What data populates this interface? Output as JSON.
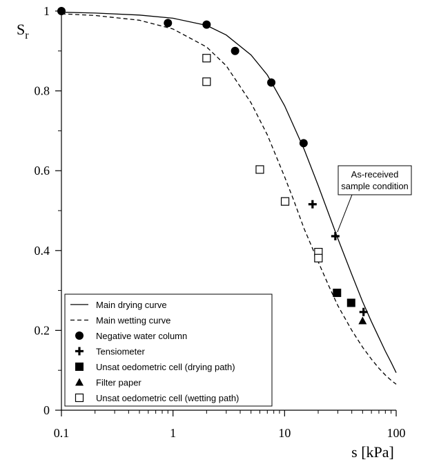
{
  "chart_data": {
    "type": "scatter",
    "x_scale": "log",
    "xlim": [
      0.1,
      100
    ],
    "ylim": [
      0,
      1
    ],
    "xlabel": "s [kPa]",
    "ylabel": "Sr",
    "x_ticks": [
      {
        "value": 0.1,
        "label": "0.1"
      },
      {
        "value": 1,
        "label": "1"
      },
      {
        "value": 10,
        "label": "10"
      },
      {
        "value": 100,
        "label": "100"
      }
    ],
    "y_ticks": [
      {
        "value": 0,
        "label": "0"
      },
      {
        "value": 0.2,
        "label": "0.2"
      },
      {
        "value": 0.4,
        "label": "0.4"
      },
      {
        "value": 0.6,
        "label": "0.6"
      },
      {
        "value": 0.8,
        "label": "0.8"
      },
      {
        "value": 1,
        "label": "1"
      }
    ],
    "grid": false,
    "legend_position": "bottom-left",
    "series": [
      {
        "name": "Main drying curve",
        "kind": "line",
        "style": "solid",
        "points": [
          [
            0.1,
            0.997
          ],
          [
            0.2,
            0.995
          ],
          [
            0.5,
            0.99
          ],
          [
            1,
            0.982
          ],
          [
            2,
            0.964
          ],
          [
            3,
            0.94
          ],
          [
            5,
            0.89
          ],
          [
            7,
            0.84
          ],
          [
            10,
            0.763
          ],
          [
            15,
            0.653
          ],
          [
            20,
            0.563
          ],
          [
            30,
            0.43
          ],
          [
            40,
            0.34
          ],
          [
            50,
            0.272
          ],
          [
            60,
            0.222
          ],
          [
            70,
            0.182
          ],
          [
            80,
            0.148
          ],
          [
            90,
            0.12
          ],
          [
            100,
            0.094
          ]
        ]
      },
      {
        "name": "Main wetting curve",
        "kind": "line",
        "style": "dashed",
        "points": [
          [
            0.1,
            0.993
          ],
          [
            0.2,
            0.989
          ],
          [
            0.5,
            0.977
          ],
          [
            1,
            0.955
          ],
          [
            2,
            0.91
          ],
          [
            3,
            0.863
          ],
          [
            5,
            0.77
          ],
          [
            7,
            0.69
          ],
          [
            10,
            0.585
          ],
          [
            12,
            0.528
          ],
          [
            15,
            0.454
          ],
          [
            20,
            0.372
          ],
          [
            25,
            0.31
          ],
          [
            30,
            0.262
          ],
          [
            40,
            0.2
          ],
          [
            50,
            0.158
          ],
          [
            60,
            0.128
          ],
          [
            70,
            0.105
          ],
          [
            80,
            0.088
          ],
          [
            90,
            0.075
          ],
          [
            100,
            0.065
          ]
        ]
      },
      {
        "name": "Negative water column",
        "kind": "points",
        "marker": "circle",
        "points": [
          [
            0.1,
            1.0
          ],
          [
            0.9,
            0.97
          ],
          [
            2.0,
            0.966
          ],
          [
            3.6,
            0.9
          ],
          [
            7.6,
            0.821
          ],
          [
            14.8,
            0.669
          ]
        ]
      },
      {
        "name": "Tensiometer",
        "kind": "points",
        "marker": "plus",
        "points": [
          [
            17.8,
            0.516
          ],
          [
            28.5,
            0.436
          ],
          [
            51,
            0.246
          ]
        ]
      },
      {
        "name": "Unsat oedometric cell (drying path)",
        "kind": "points",
        "marker": "square-filled",
        "points": [
          [
            29.5,
            0.294
          ],
          [
            39.5,
            0.269
          ]
        ]
      },
      {
        "name": "Filter paper",
        "kind": "points",
        "marker": "triangle",
        "points": [
          [
            50,
            0.224
          ]
        ]
      },
      {
        "name": "Unsat oedometric cell (wetting path)",
        "kind": "points",
        "marker": "square-open",
        "points": [
          [
            2.0,
            0.882
          ],
          [
            2.0,
            0.823
          ],
          [
            6.0,
            0.603
          ],
          [
            10.1,
            0.523
          ],
          [
            20.1,
            0.396
          ],
          [
            20.1,
            0.381
          ]
        ]
      }
    ],
    "annotation": {
      "lines": [
        "As-received",
        "sample condition"
      ],
      "points_to": [
        28.5,
        0.436
      ]
    }
  }
}
